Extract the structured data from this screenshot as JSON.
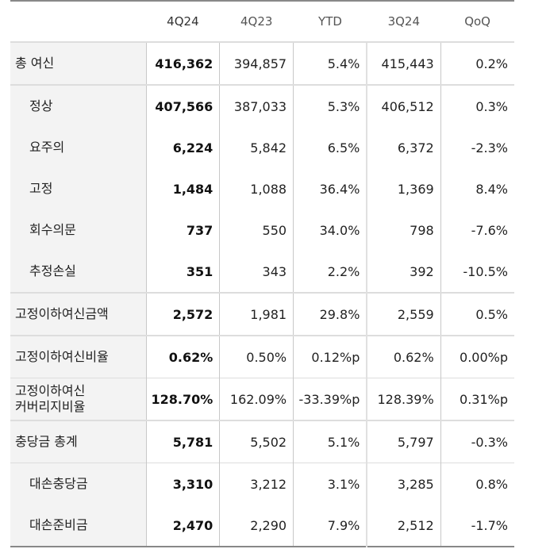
{
  "table": {
    "headers": {
      "label": "",
      "col1": "4Q24",
      "col2": "4Q23",
      "col3": "YTD",
      "col4": "3Q24",
      "col5": "QoQ"
    },
    "rows": [
      {
        "label": "총 여신",
        "indent": false,
        "v1": "416,362",
        "v2": "394,857",
        "v3": "5.4%",
        "v4": "415,443",
        "v5": "0.2%"
      },
      {
        "label": "정상",
        "indent": true,
        "v1": "407,566",
        "v2": "387,033",
        "v3": "5.3%",
        "v4": "406,512",
        "v5": "0.3%"
      },
      {
        "label": "요주의",
        "indent": true,
        "v1": "6,224",
        "v2": "5,842",
        "v3": "6.5%",
        "v4": "6,372",
        "v5": "-2.3%"
      },
      {
        "label": "고정",
        "indent": true,
        "v1": "1,484",
        "v2": "1,088",
        "v3": "36.4%",
        "v4": "1,369",
        "v5": "8.4%"
      },
      {
        "label": "회수의문",
        "indent": true,
        "v1": "737",
        "v2": "550",
        "v3": "34.0%",
        "v4": "798",
        "v5": "-7.6%"
      },
      {
        "label": "추정손실",
        "indent": true,
        "v1": "351",
        "v2": "343",
        "v3": "2.2%",
        "v4": "392",
        "v5": "-10.5%"
      },
      {
        "label": "고정이하여신금액",
        "indent": false,
        "v1": "2,572",
        "v2": "1,981",
        "v3": "29.8%",
        "v4": "2,559",
        "v5": "0.5%"
      },
      {
        "label": "고정이하여신비율",
        "indent": false,
        "v1": "0.62%",
        "v2": "0.50%",
        "v3": "0.12%p",
        "v4": "0.62%",
        "v5": "0.00%p"
      },
      {
        "label_line1": "고정이하여신",
        "label_line2": "커버리지비율",
        "indent": false,
        "v1": "128.70%",
        "v2": "162.09%",
        "v3": "-33.39%p",
        "v4": "128.39%",
        "v5": "0.31%p"
      },
      {
        "label": "충당금 총계",
        "indent": false,
        "v1": "5,781",
        "v2": "5,502",
        "v3": "5.1%",
        "v4": "5,797",
        "v5": "-0.3%"
      },
      {
        "label": "대손충당금",
        "indent": true,
        "v1": "3,310",
        "v2": "3,212",
        "v3": "3.1%",
        "v4": "3,285",
        "v5": "0.8%"
      },
      {
        "label": "대손준비금",
        "indent": true,
        "v1": "2,470",
        "v2": "2,290",
        "v3": "7.9%",
        "v4": "2,512",
        "v5": "-1.7%"
      }
    ]
  },
  "colors": {
    "label_bg": "#f3f3f3",
    "border_outer": "#888888",
    "border_inner": "#dddddd",
    "text": "#222222"
  }
}
